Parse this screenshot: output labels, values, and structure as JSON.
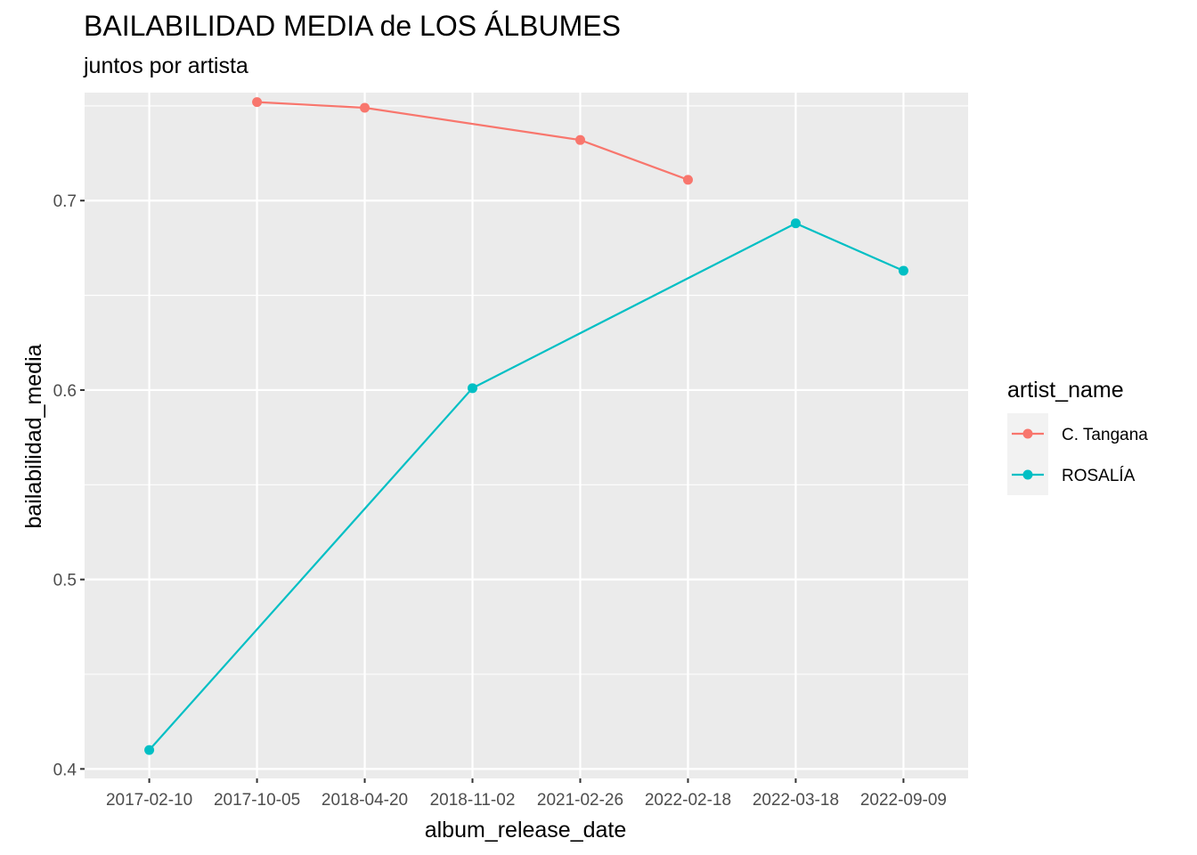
{
  "chart_data": {
    "type": "line",
    "title": "BAILABILIDAD MEDIA de LOS ÁLBUMES",
    "subtitle": "juntos por artista",
    "xlabel": "album_release_date",
    "ylabel": "bailabilidad_media",
    "categories": [
      "2017-02-10",
      "2017-10-05",
      "2018-04-20",
      "2018-11-02",
      "2021-02-26",
      "2022-02-18",
      "2022-03-18",
      "2022-09-09"
    ],
    "ylim": [
      0.395,
      0.757
    ],
    "y_ticks": [
      0.4,
      0.5,
      0.6,
      0.7
    ],
    "y_tick_labels": [
      "0.4",
      "0.5",
      "0.6",
      "0.7"
    ],
    "grid": true,
    "legend": {
      "title": "artist_name",
      "placement": "right"
    },
    "series": [
      {
        "name": "C. Tangana",
        "color": "#F8766D",
        "values": [
          null,
          0.752,
          0.749,
          null,
          0.732,
          0.711,
          null,
          null
        ]
      },
      {
        "name": "ROSALÍA",
        "color": "#00BFC4",
        "values": [
          0.41,
          null,
          null,
          0.601,
          null,
          null,
          0.688,
          0.663
        ]
      }
    ]
  }
}
